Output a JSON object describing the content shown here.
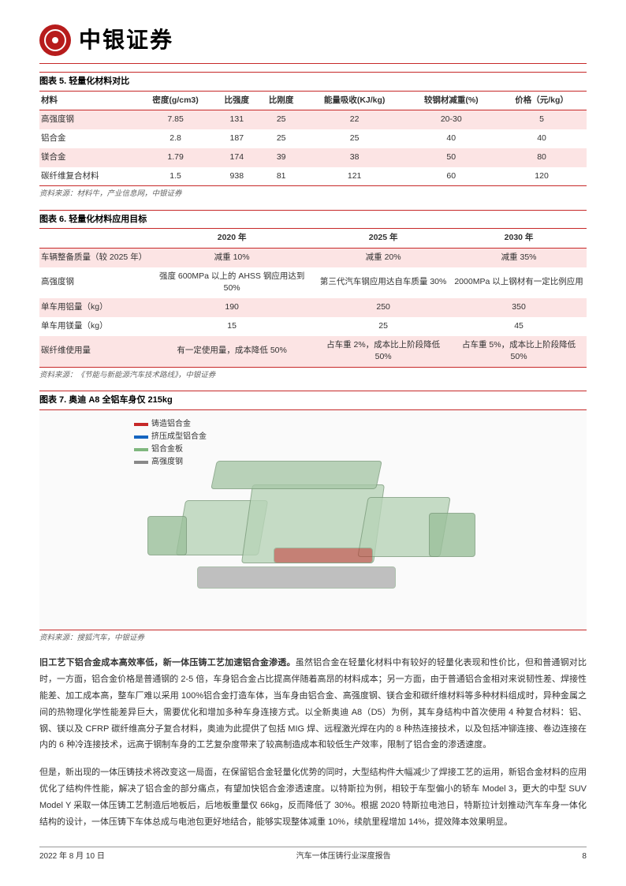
{
  "header": {
    "company": "中银证券"
  },
  "table5": {
    "title": "图表 5. 轻量化材料对比",
    "columns": [
      "材料",
      "密度(g/cm3)",
      "比强度",
      "比刚度",
      "能量吸收(KJ/kg)",
      "较钢材减重(%)",
      "价格（元/kg）"
    ],
    "rows": [
      [
        "高强度钢",
        "7.85",
        "131",
        "25",
        "22",
        "20-30",
        "5"
      ],
      [
        "铝合金",
        "2.8",
        "187",
        "25",
        "25",
        "40",
        "40"
      ],
      [
        "镁合金",
        "1.79",
        "174",
        "39",
        "38",
        "50",
        "80"
      ],
      [
        "碳纤维复合材料",
        "1.5",
        "938",
        "81",
        "121",
        "60",
        "120"
      ]
    ],
    "source": "资料来源：材料牛，产业信息网，中银证券"
  },
  "table6": {
    "title": "图表 6. 轻量化材料应用目标",
    "columns": [
      "",
      "2020 年",
      "2025 年",
      "2030 年"
    ],
    "rows": [
      [
        "车辆整备质量（较 2025 年）",
        "减重 10%",
        "减重 20%",
        "减重 35%"
      ],
      [
        "高强度钢",
        "强度 600MPa 以上的 AHSS 钢应用达到 50%",
        "第三代汽车钢应用达自车质量 30%",
        "2000MPa 以上钢材有一定比例应用"
      ],
      [
        "单车用铝量（kg）",
        "190",
        "250",
        "350"
      ],
      [
        "单车用镁量（kg）",
        "15",
        "25",
        "45"
      ],
      [
        "碳纤维使用量",
        "有一定使用量，成本降低 50%",
        "占车重 2%，成本比上阶段降低 50%",
        "占车重 5%，成本比上阶段降低 50%"
      ]
    ],
    "source": "资料来源：《节能与新能源汽车技术路线》，中银证券"
  },
  "fig7": {
    "title": "图表 7. 奥迪 A8 全铝车身仅 215kg",
    "legend": [
      {
        "label": "铸造铝合金",
        "color": "#c62828"
      },
      {
        "label": "挤压成型铝合金",
        "color": "#1565c0"
      },
      {
        "label": "铝合金板",
        "color": "#7fb77e"
      },
      {
        "label": "高强度钢",
        "color": "#888888"
      }
    ],
    "source": "资料来源：搜狐汽车，中银证券"
  },
  "body": {
    "para1_bold": "旧工艺下铝合金成本高效率低，新一体压铸工艺加速铝合金渗透。",
    "para1": "虽然铝合金在轻量化材料中有较好的轻量化表现和性价比，但和普通钢对比时，一方面，铝合金价格是普通钢的 2-5 倍，车身铝合金占比提高伴随着高昂的材料成本；另一方面，由于普通铝合金相对来说韧性差、焊接性能差、加工成本高，整车厂难以采用 100%铝合金打造车体，当车身由铝合金、高强度钢、镁合金和碳纤维材料等多种材料组成时，异种金属之间的热物理化学性能差异巨大，需要优化和增加多种车身连接方式。以全新奥迪 A8（D5）为例，其车身结构中首次使用 4 种复合材料：铝、钢、镁以及 CFRP 碳纤维高分子复合材料，奥迪为此提供了包括 MIG 焊、远程激光焊在内的 8 种热连接技术，以及包括冲铆连接、卷边连接在内的 6 种冷连接技术，远高于钢制车身的工艺复杂度带来了较高制造成本和较低生产效率，限制了铝合金的渗透速度。",
    "para2": "但是，新出现的一体压铸技术将改变这一局面，在保留铝合金轻量化优势的同时，大型结构件大幅减少了焊接工艺的运用，新铝合金材料的应用优化了结构件性能，解决了铝合金的部分痛点，有望加快铝合金渗透速度。以特斯拉为例，相较于车型偏小的轿车 Model 3，更大的中型 SUV Model Y 采取一体压铸工艺制造后地板后，后地板重量仅 66kg，反而降低了 30%。根据 2020 特斯拉电池日，特斯拉计划推动汽车车身一体化结构的设计，一体压铸下车体总成与电池包更好地结合，能够实现整体减重 10%，续航里程增加 14%，提效降本效果明显。"
  },
  "footer": {
    "date": "2022 年 8 月 10 日",
    "center": "汽车一体压铸行业深度报告",
    "page": "8"
  }
}
